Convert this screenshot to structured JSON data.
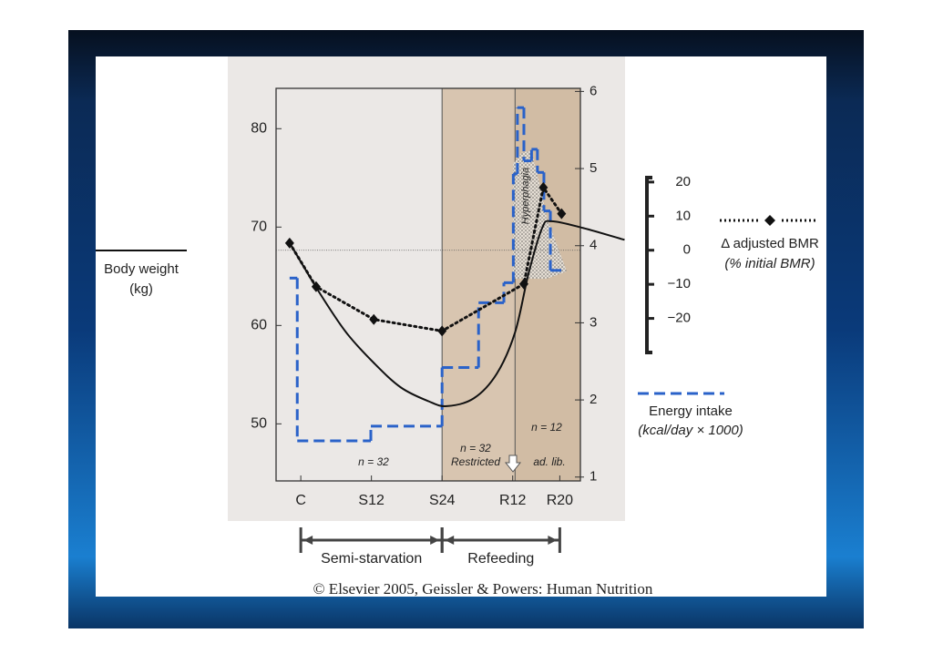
{
  "slide": {
    "source": "© Elsevier 2005, Geissler & Powers: Human Nutrition"
  },
  "chart_data": {
    "type": "line",
    "xlim": [
      -4.2,
      47.5
    ],
    "xticks": [
      {
        "value": 0,
        "label": "C"
      },
      {
        "value": 12,
        "label": "S12"
      },
      {
        "value": 24,
        "label": "S24"
      },
      {
        "value": 36,
        "label": "R12"
      },
      {
        "value": 44,
        "label": "R20"
      }
    ],
    "ylim": [
      44.2,
      84.1
    ],
    "yticks": [
      50,
      60,
      70,
      80
    ],
    "y2lim": [
      0.95,
      6.04
    ],
    "y2ticks": [
      1,
      2,
      3,
      4,
      5,
      6
    ],
    "y3lim": [
      -30,
      21.3
    ],
    "y3ticks": [
      {
        "value": -20,
        "label": "−20"
      },
      {
        "value": -10,
        "label": "−10"
      },
      0,
      10,
      20
    ],
    "series": [
      {
        "name": "Body weight",
        "unit": "(kg)",
        "color": "#111111",
        "style": "solid",
        "x": [
          -1.9,
          3.1,
          7.7,
          12.4,
          17.0,
          21.7,
          24.8,
          29.4,
          33.3,
          36.4,
          38.7,
          41.0,
          42.6,
          48.0,
          55.0
        ],
        "values": [
          68.4,
          63.4,
          59.3,
          56.2,
          53.7,
          52.3,
          51.8,
          52.6,
          55.1,
          59.3,
          65.3,
          69.9,
          70.6,
          69.9,
          68.7
        ]
      },
      {
        "name": "Δ adjusted BMR",
        "unit": "(% initial BMR)",
        "color": "#111111",
        "style": "dotted",
        "marker": "diamond",
        "axis": "y3",
        "x": [
          -1.9,
          2.6,
          12.4,
          24.0,
          37.9,
          41.2,
          44.3
        ],
        "values": [
          2.1,
          -10.7,
          -20.3,
          -23.7,
          -9.9,
          18.4,
          10.7
        ]
      },
      {
        "name": "Energy intake",
        "unit": "(kcal/day × 1000)",
        "color": "#2a62c9",
        "style": "dashed",
        "kind": "step",
        "axis": "y2",
        "bins": [
          -1.9,
          -0.6,
          11.9,
          24.0,
          30.2,
          34.5,
          36.1,
          36.8,
          37.9,
          39.2,
          40.2,
          41.3,
          42.4,
          45.1
        ],
        "values": [
          3.58,
          1.47,
          1.66,
          2.42,
          3.26,
          3.52,
          4.93,
          5.79,
          5.1,
          5.25,
          4.95,
          4.45,
          3.68
        ]
      }
    ],
    "regions": [
      {
        "x": [
          24,
          36.4
        ],
        "color": "#d8c5b0",
        "annotations": [
          "n = 32",
          "Restricted"
        ]
      },
      {
        "x": [
          36.4,
          47.5
        ],
        "color": "#d1bca4",
        "annotations": [
          "n = 12",
          "ad. lib."
        ]
      }
    ],
    "annotations": [
      "n = 32",
      "Hyperphagia"
    ],
    "phases": [
      {
        "label": "Semi-starvation",
        "x": [
          0,
          24
        ]
      },
      {
        "label": "Refeeding",
        "x": [
          24,
          44
        ]
      }
    ]
  }
}
